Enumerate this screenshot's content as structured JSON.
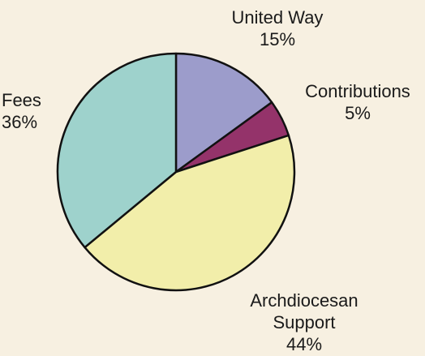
{
  "chart_data": {
    "type": "pie",
    "title": "",
    "start_angle_deg": 0,
    "direction": "clockwise",
    "slices": [
      {
        "label": "United Way",
        "percent_label": "15%",
        "value": 15,
        "color": "#9c9ccb"
      },
      {
        "label": "Contributions",
        "percent_label": "5%",
        "value": 5,
        "color": "#94336a"
      },
      {
        "label": "Archdiocesan Support",
        "label_lines": [
          "Archdiocesan",
          "Support"
        ],
        "percent_label": "44%",
        "value": 44,
        "color": "#f2eeaa"
      },
      {
        "label": "Fees",
        "percent_label": "36%",
        "value": 36,
        "color": "#9ed2cc"
      }
    ],
    "stroke_color": "#111111"
  }
}
